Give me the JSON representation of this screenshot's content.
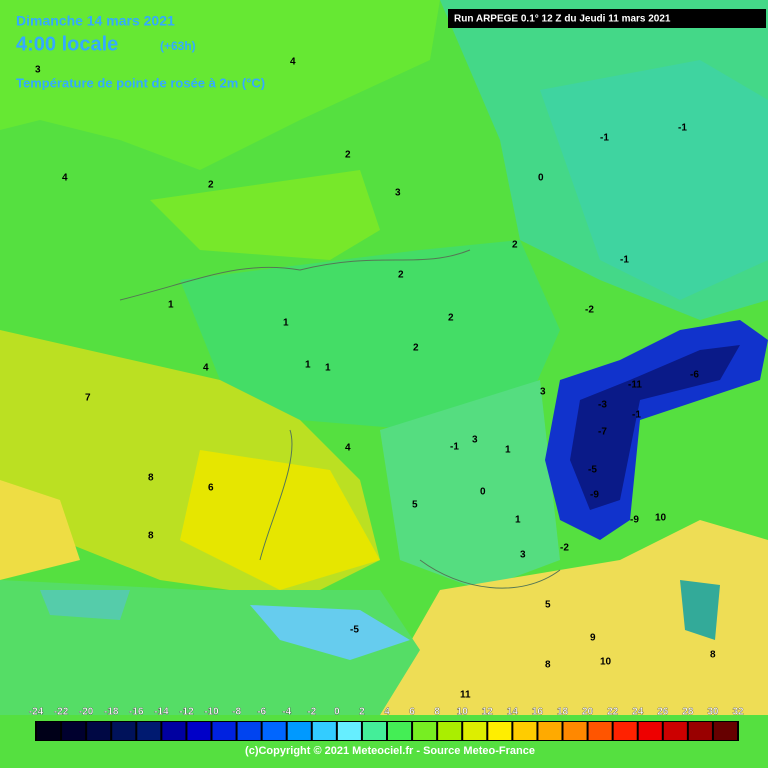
{
  "header": {
    "date": "Dimanche 14 mars 2021",
    "time": "4:00 locale",
    "lead": "(+63h)",
    "field": "Température de point de rosée à 2m (°C)",
    "run": "Run ARPEGE 0.1° 12 Z du Jeudi 11 mars 2021"
  },
  "legend": {
    "ticks": [
      -24,
      -22,
      -20,
      -18,
      -16,
      -14,
      -12,
      -10,
      -8,
      -6,
      -4,
      -2,
      0,
      2,
      4,
      6,
      8,
      10,
      12,
      14,
      16,
      18,
      20,
      22,
      24,
      26,
      28,
      30,
      32
    ],
    "colors": [
      "#000018",
      "#00002e",
      "#000844",
      "#00125a",
      "#001a70",
      "#0000a0",
      "#0000c8",
      "#0022e0",
      "#0044f0",
      "#0066ff",
      "#0099ff",
      "#33ccff",
      "#66eeff",
      "#44ee99",
      "#44ee55",
      "#77ee22",
      "#aaee00",
      "#ddee00",
      "#ffee00",
      "#ffcc00",
      "#ffaa00",
      "#ff8800",
      "#ff5500",
      "#ff2200",
      "#ee0000",
      "#cc0000",
      "#990000",
      "#660000"
    ]
  },
  "map_labels": [
    "3",
    "4",
    "2",
    "2",
    "3",
    "4",
    "1",
    "-1",
    "-1",
    "0",
    "-2",
    "1",
    "2",
    "1",
    "1",
    "2",
    "2",
    "2",
    "3",
    "4",
    "5",
    "4",
    "7",
    "8",
    "8",
    "6",
    "-3",
    "-7",
    "-9",
    "-5",
    "-9",
    "-11",
    "-6",
    "-1",
    "3",
    "0",
    "-2",
    "1",
    "-5",
    "-1",
    "1",
    "3",
    "5",
    "8",
    "8",
    "9",
    "10",
    "10",
    "11",
    "-1"
  ],
  "footer": "(c)Copyright © 2021 Meteociel.fr - Source Meteo-France"
}
